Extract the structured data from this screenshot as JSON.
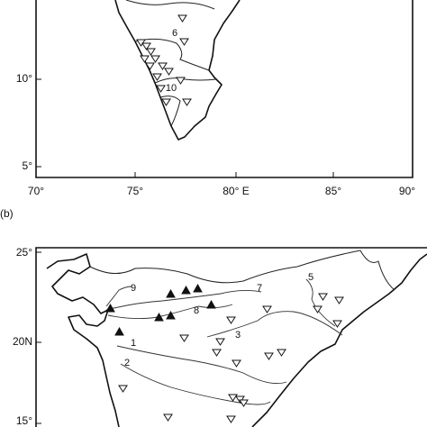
{
  "panel_a": {
    "lat_labels": [
      "10°",
      "5°"
    ],
    "lon_labels": [
      "70°",
      "75°",
      "80° E",
      "85°",
      "90°"
    ],
    "site_labels": [
      "6",
      "10"
    ]
  },
  "panel_b": {
    "label": "(b)",
    "lat_labels": [
      "25°",
      "20N",
      "15°"
    ],
    "river_labels": [
      "9",
      "7",
      "8",
      "5",
      "1",
      "2",
      "3"
    ]
  }
}
